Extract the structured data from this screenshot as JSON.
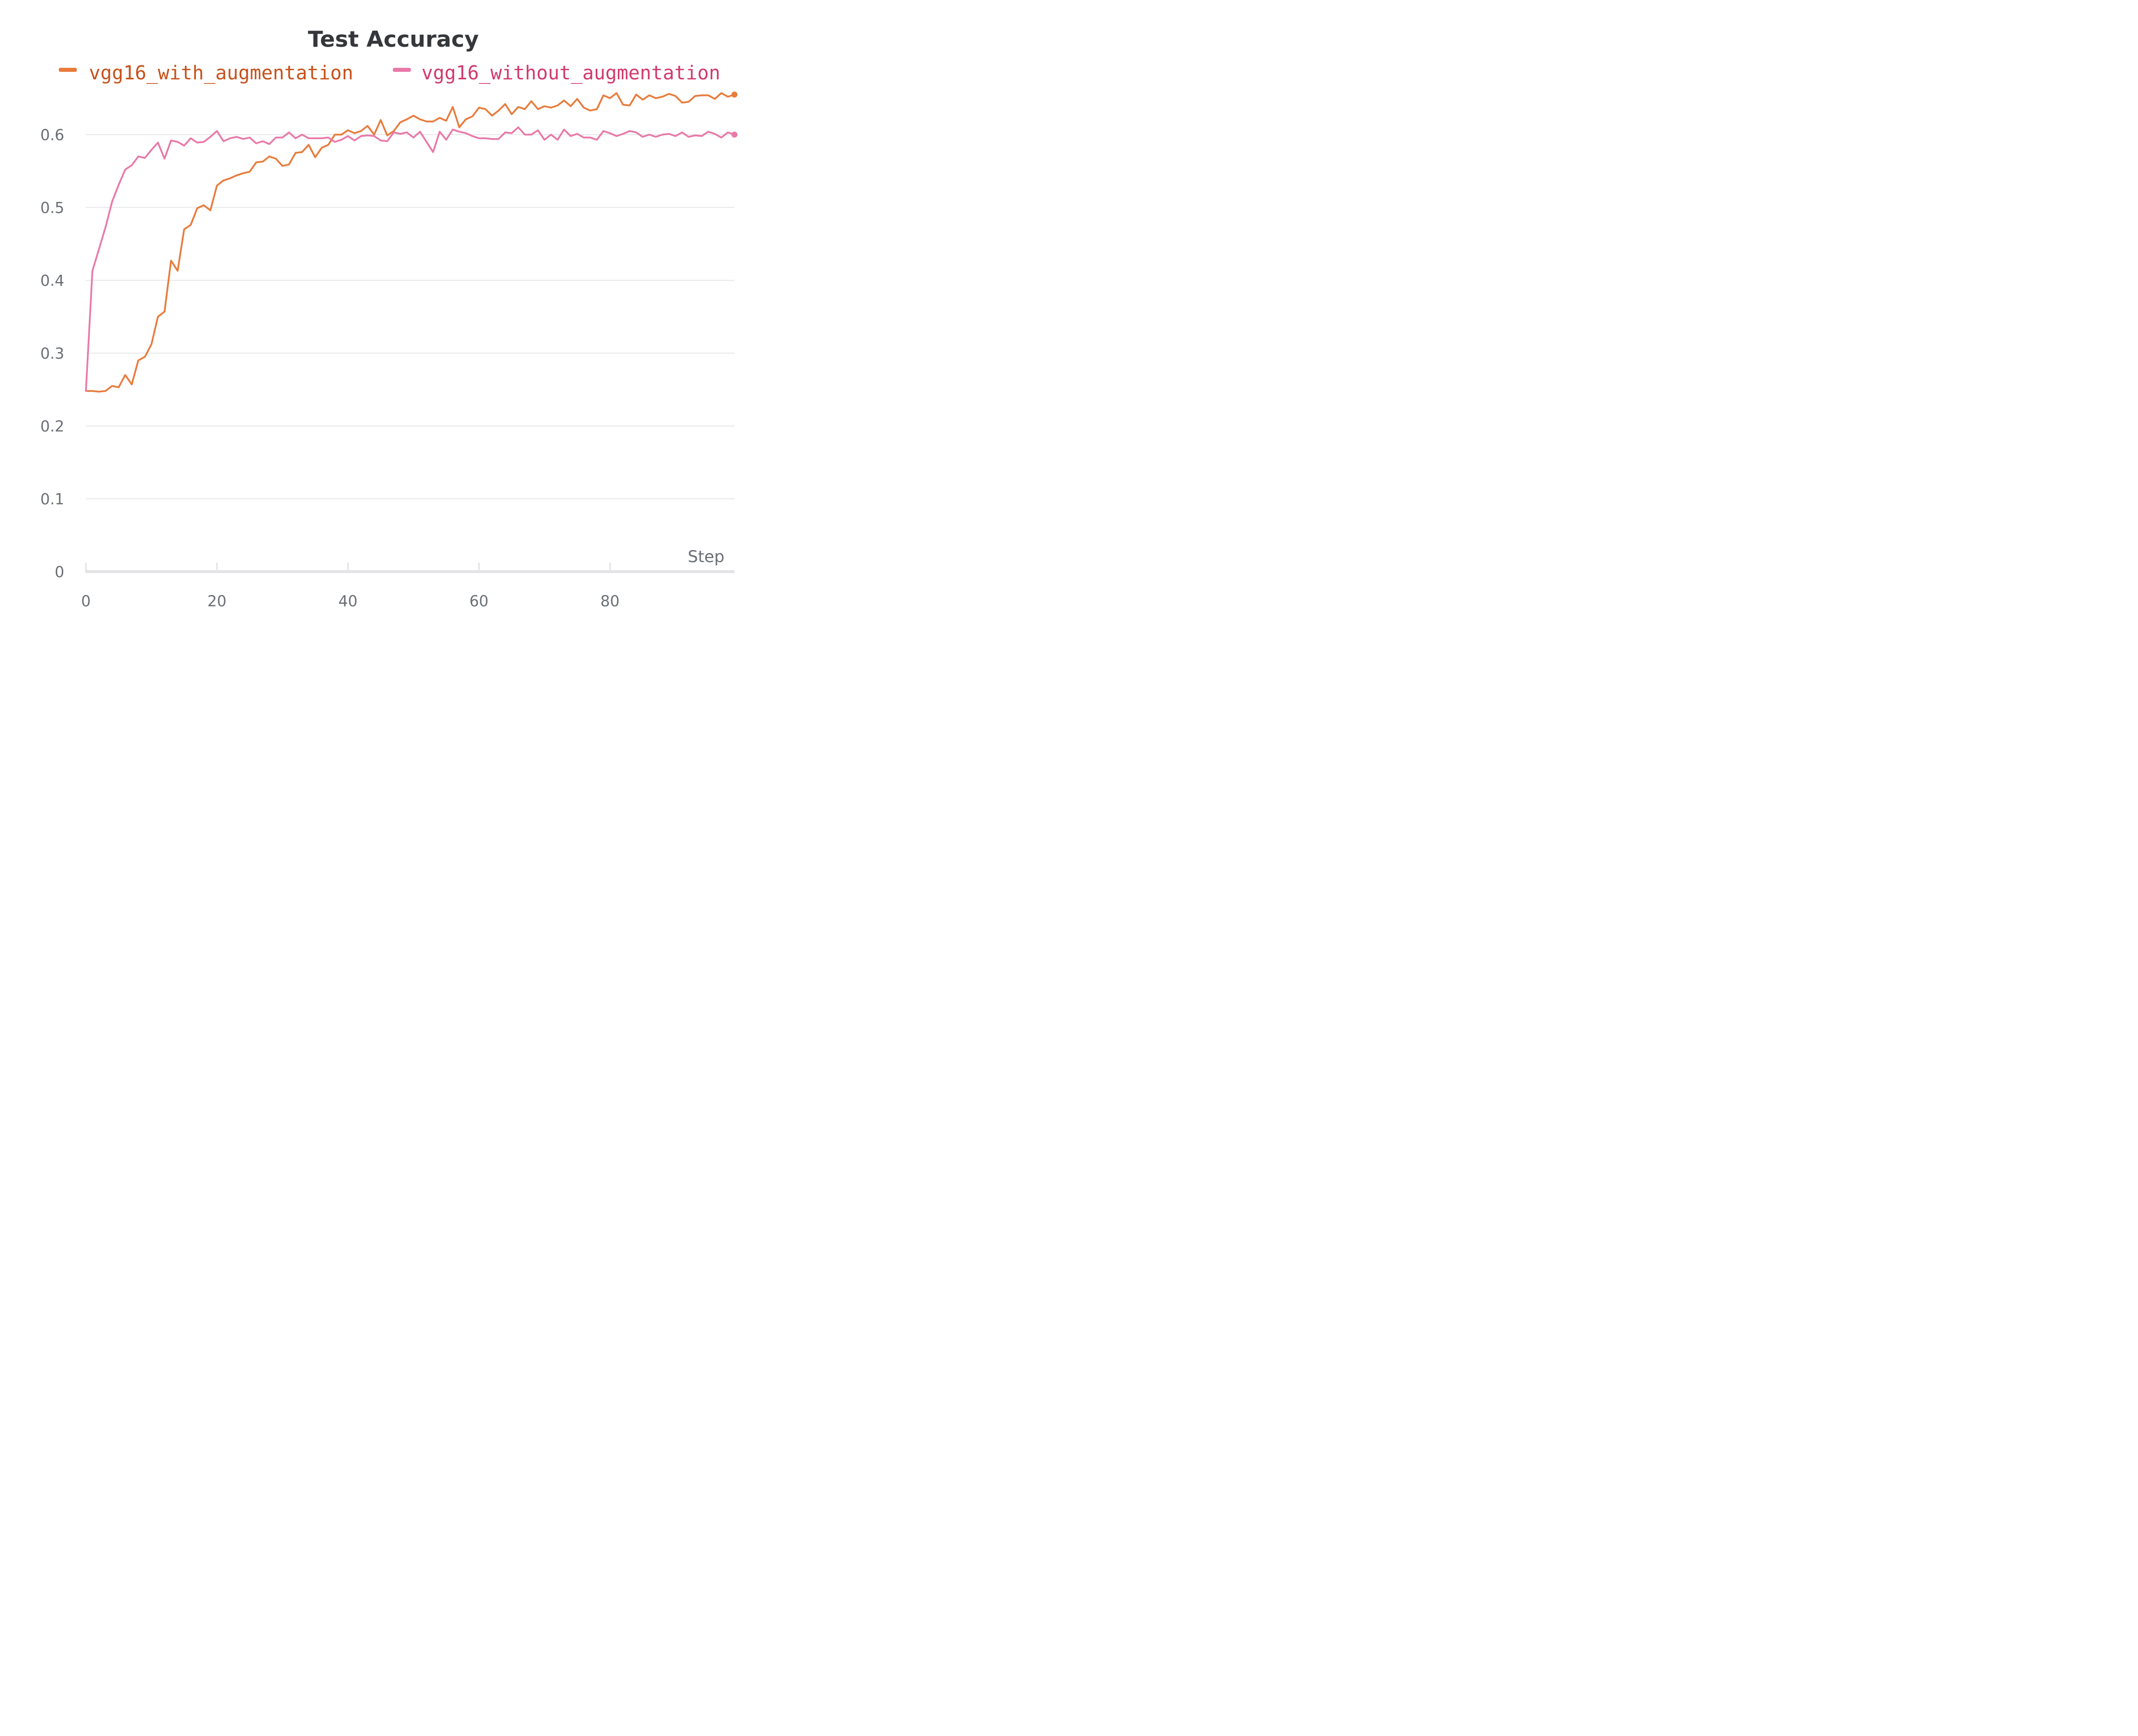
{
  "chart_data": {
    "type": "line",
    "title": "Test Accuracy",
    "xlabel": "Step",
    "ylabel": "",
    "xlim": [
      0,
      99
    ],
    "ylim": [
      0,
      0.65
    ],
    "x_ticks": [
      0,
      20,
      40,
      60,
      80
    ],
    "y_ticks": [
      0,
      0.1,
      0.2,
      0.3,
      0.4,
      0.5,
      0.6
    ],
    "x_tick_labels": [
      "0",
      "20",
      "40",
      "60",
      "80"
    ],
    "y_tick_labels": [
      "0",
      "0.1",
      "0.2",
      "0.3",
      "0.4",
      "0.5",
      "0.6"
    ],
    "grid": true,
    "legend_position": "top",
    "x": [
      0,
      1,
      2,
      3,
      4,
      5,
      6,
      7,
      8,
      9,
      10,
      11,
      12,
      13,
      14,
      15,
      16,
      17,
      18,
      19,
      20,
      21,
      22,
      23,
      24,
      25,
      26,
      27,
      28,
      29,
      30,
      31,
      32,
      33,
      34,
      35,
      36,
      37,
      38,
      39,
      40,
      41,
      42,
      43,
      44,
      45,
      46,
      47,
      48,
      49,
      50,
      51,
      52,
      53,
      54,
      55,
      56,
      57,
      58,
      59,
      60,
      61,
      62,
      63,
      64,
      65,
      66,
      67,
      68,
      69,
      70,
      71,
      72,
      73,
      74,
      75,
      76,
      77,
      78,
      79,
      80,
      81,
      82,
      83,
      84,
      85,
      86,
      87,
      88,
      89,
      90,
      91,
      92,
      93,
      94,
      95,
      96,
      97,
      98,
      99
    ],
    "series": [
      {
        "name": "vgg16_with_augmentation",
        "color": "#e87b3c",
        "label_color": "#c8511b",
        "values": [
          0.248,
          0.248,
          0.247,
          0.248,
          0.255,
          0.253,
          0.27,
          0.257,
          0.29,
          0.295,
          0.312,
          0.35,
          0.357,
          0.427,
          0.413,
          0.47,
          0.476,
          0.499,
          0.503,
          0.496,
          0.53,
          0.537,
          0.54,
          0.544,
          0.547,
          0.549,
          0.562,
          0.563,
          0.57,
          0.567,
          0.557,
          0.559,
          0.575,
          0.576,
          0.586,
          0.569,
          0.582,
          0.586,
          0.6,
          0.6,
          0.606,
          0.602,
          0.605,
          0.612,
          0.6,
          0.62,
          0.599,
          0.605,
          0.617,
          0.621,
          0.626,
          0.621,
          0.618,
          0.618,
          0.623,
          0.619,
          0.638,
          0.61,
          0.621,
          0.625,
          0.637,
          0.635,
          0.626,
          0.633,
          0.642,
          0.628,
          0.638,
          0.635,
          0.646,
          0.635,
          0.639,
          0.637,
          0.64,
          0.647,
          0.639,
          0.649,
          0.637,
          0.633,
          0.635,
          0.654,
          0.65,
          0.657,
          0.641,
          0.64,
          0.655,
          0.648,
          0.654,
          0.65,
          0.652,
          0.656,
          0.653,
          0.644,
          0.645,
          0.653,
          0.654,
          0.654,
          0.649,
          0.657,
          0.652,
          0.655
        ]
      },
      {
        "name": "vgg16_without_augmentation",
        "color": "#e879a8",
        "label_color": "#d23a6c",
        "values": [
          0.248,
          0.413,
          0.443,
          0.473,
          0.508,
          0.531,
          0.552,
          0.558,
          0.57,
          0.568,
          0.579,
          0.589,
          0.567,
          0.592,
          0.59,
          0.585,
          0.595,
          0.589,
          0.59,
          0.597,
          0.605,
          0.591,
          0.595,
          0.597,
          0.594,
          0.596,
          0.588,
          0.591,
          0.587,
          0.596,
          0.596,
          0.603,
          0.595,
          0.6,
          0.595,
          0.595,
          0.595,
          0.596,
          0.59,
          0.593,
          0.598,
          0.592,
          0.598,
          0.599,
          0.598,
          0.592,
          0.591,
          0.603,
          0.601,
          0.603,
          0.596,
          0.604,
          0.59,
          0.576,
          0.604,
          0.593,
          0.607,
          0.604,
          0.602,
          0.598,
          0.595,
          0.595,
          0.594,
          0.594,
          0.603,
          0.602,
          0.61,
          0.6,
          0.6,
          0.606,
          0.593,
          0.6,
          0.593,
          0.607,
          0.598,
          0.601,
          0.596,
          0.596,
          0.593,
          0.605,
          0.602,
          0.598,
          0.601,
          0.605,
          0.603,
          0.597,
          0.6,
          0.597,
          0.6,
          0.601,
          0.598,
          0.603,
          0.597,
          0.599,
          0.598,
          0.604,
          0.601,
          0.596,
          0.603,
          0.6
        ]
      }
    ]
  }
}
